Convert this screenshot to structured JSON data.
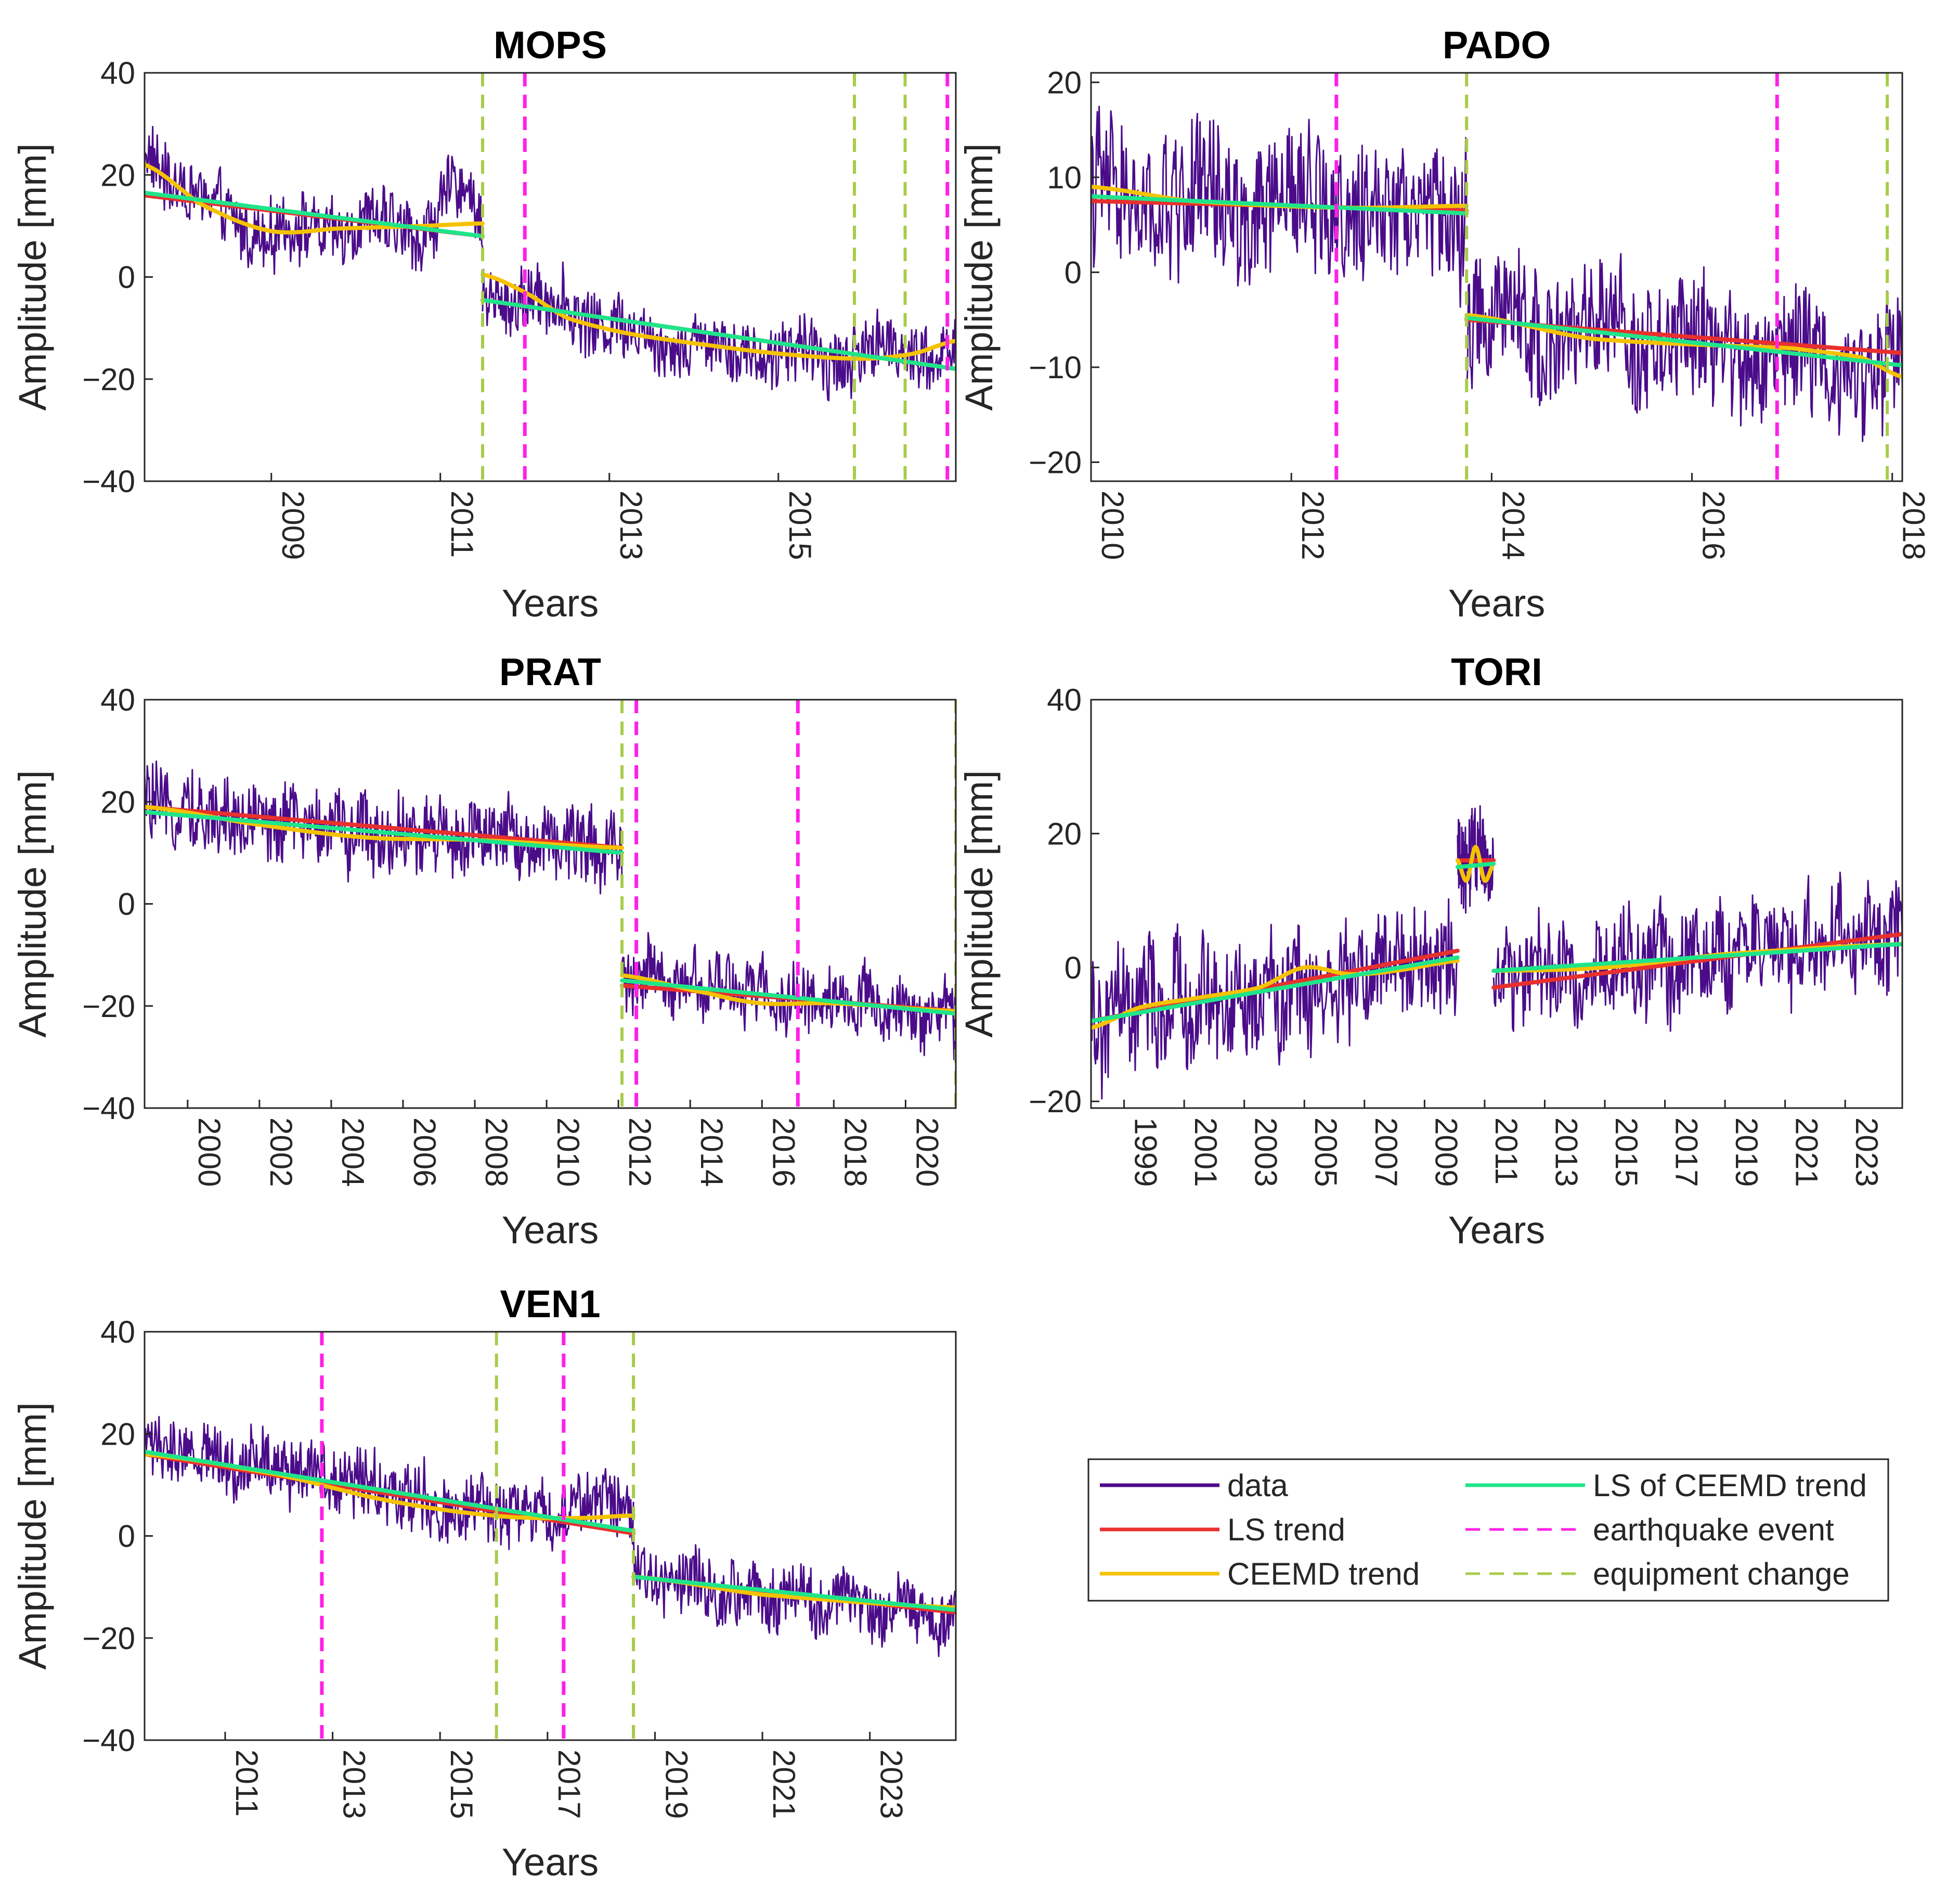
{
  "colors": {
    "data": "#4B0C8A",
    "ls_trend": "#E8302E",
    "ceemd_trend": "#F5C200",
    "ls_ceemd_trend": "#1FE58A",
    "earthquake": "#FF20E8",
    "equipment": "#A8CC4A",
    "axis": "#262626"
  },
  "legend": {
    "items": [
      {
        "label": "data",
        "key": "data",
        "style": "solid"
      },
      {
        "label": "LS trend",
        "key": "ls_trend",
        "style": "solid"
      },
      {
        "label": "CEEMD trend",
        "key": "ceemd_trend",
        "style": "solid"
      },
      {
        "label": "LS of CEEMD trend",
        "key": "ls_ceemd_trend",
        "style": "solid"
      },
      {
        "label": "earthquake event",
        "key": "earthquake",
        "style": "dashed"
      },
      {
        "label": "equipment change",
        "key": "equipment",
        "style": "dashed"
      }
    ]
  },
  "chart_data": [
    {
      "type": "line",
      "title": "MOPS",
      "xlabel": "Years",
      "ylabel": "Amplitude [mm]",
      "xlim": [
        2007.5,
        2017.1
      ],
      "ylim": [
        -40,
        40
      ],
      "xticks": [
        2009,
        2011,
        2013,
        2015
      ],
      "yticks": [
        -40,
        -20,
        0,
        20,
        40
      ],
      "earthquakes": [
        2012.0,
        2017.0
      ],
      "equipment_changes": [
        2011.5,
        2015.9,
        2016.5
      ],
      "segments": [
        {
          "t0": 2007.5,
          "t1": 2011.5,
          "noise": 6,
          "data_trend": [
            [
              2007.5,
              25
            ],
            [
              2008.2,
              14
            ],
            [
              2009.0,
              8
            ],
            [
              2010.0,
              10
            ],
            [
              2010.8,
              9
            ],
            [
              2011.2,
              18
            ],
            [
              2011.5,
              10
            ]
          ],
          "ls_trend": [
            [
              2007.5,
              16
            ],
            [
              2011.5,
              8
            ]
          ],
          "ceemd_trend": [
            [
              2007.5,
              22
            ],
            [
              2008.2,
              14
            ],
            [
              2009.0,
              9
            ],
            [
              2009.8,
              9.5
            ],
            [
              2010.8,
              10
            ],
            [
              2011.5,
              10.5
            ]
          ],
          "ls_ceemd_trend": [
            [
              2007.5,
              16.5
            ],
            [
              2011.5,
              8
            ]
          ]
        },
        {
          "t0": 2011.5,
          "t1": 2017.1,
          "noise": 6,
          "data_trend": [
            [
              2011.5,
              -3
            ],
            [
              2012.5,
              -6
            ],
            [
              2013.5,
              -12
            ],
            [
              2014.5,
              -14
            ],
            [
              2015.5,
              -16
            ],
            [
              2016.3,
              -14
            ],
            [
              2017.1,
              -15
            ]
          ],
          "ls_trend": [
            [
              2011.5,
              -4.5
            ],
            [
              2017.1,
              -18
            ]
          ],
          "ceemd_trend": [
            [
              2011.5,
              0.5
            ],
            [
              2012.0,
              -3
            ],
            [
              2012.5,
              -8
            ],
            [
              2013.2,
              -11
            ],
            [
              2014.0,
              -13
            ],
            [
              2015.0,
              -15
            ],
            [
              2016.0,
              -16
            ],
            [
              2016.6,
              -15
            ],
            [
              2017.1,
              -12.5
            ]
          ],
          "ls_ceemd_trend": [
            [
              2011.5,
              -4.5
            ],
            [
              2017.1,
              -18
            ]
          ]
        }
      ]
    },
    {
      "type": "line",
      "title": "PADO",
      "xlabel": "Years",
      "ylabel": "Amplitude [mm]",
      "xlim": [
        2010,
        2018.1
      ],
      "ylim": [
        -22,
        21
      ],
      "xticks": [
        2010,
        2012,
        2014,
        2016,
        2018
      ],
      "yticks": [
        -20,
        -10,
        0,
        10,
        20
      ],
      "earthquakes": [
        2012.45,
        2016.85
      ],
      "equipment_changes": [
        2013.75,
        2017.95
      ],
      "segments": [
        {
          "t0": 2010,
          "t1": 2013.75,
          "noise": 7,
          "data_trend": [
            [
              2010,
              7.5
            ],
            [
              2013.75,
              6.5
            ]
          ],
          "ls_trend": [
            [
              2010,
              7.5
            ],
            [
              2013.75,
              6.5
            ]
          ],
          "ceemd_trend": [
            [
              2010,
              9
            ],
            [
              2011,
              7.5
            ],
            [
              2012.5,
              6.8
            ],
            [
              2013.75,
              7
            ]
          ],
          "ls_ceemd_trend": [
            [
              2010,
              8
            ],
            [
              2013.75,
              6.2
            ]
          ]
        },
        {
          "t0": 2013.75,
          "t1": 2018.1,
          "noise": 6,
          "data_trend": [
            [
              2013.75,
              -5
            ],
            [
              2018.1,
              -10
            ]
          ],
          "ls_trend": [
            [
              2013.75,
              -5
            ],
            [
              2018.1,
              -8.5
            ]
          ],
          "ceemd_trend": [
            [
              2013.75,
              -4.5
            ],
            [
              2015,
              -7
            ],
            [
              2017,
              -8
            ],
            [
              2017.7,
              -9
            ],
            [
              2018.1,
              -11
            ]
          ],
          "ls_ceemd_trend": [
            [
              2013.75,
              -4.8
            ],
            [
              2018.1,
              -9.8
            ]
          ]
        }
      ]
    },
    {
      "type": "line",
      "title": "PRAT",
      "xlabel": "Years",
      "ylabel": "Amplitude [mm]",
      "xlim": [
        1998.8,
        2021.4
      ],
      "ylim": [
        -40,
        40
      ],
      "xticks": [
        2000,
        2002,
        2004,
        2006,
        2008,
        2010,
        2012,
        2014,
        2016,
        2018,
        2020
      ],
      "yticks": [
        -40,
        -20,
        0,
        20,
        40
      ],
      "earthquakes": [
        2012.5,
        2017.0
      ],
      "equipment_changes": [
        2012.1,
        2021.4
      ],
      "segments": [
        {
          "t0": 1998.8,
          "t1": 2012.1,
          "noise": 7,
          "data_trend": [
            [
              1998.8,
              19
            ],
            [
              2005,
              14
            ],
            [
              2012.1,
              11
            ]
          ],
          "ls_trend": [
            [
              1998.8,
              19
            ],
            [
              2012.1,
              11
            ]
          ],
          "ceemd_trend": [
            [
              1998.8,
              19
            ],
            [
              2002,
              15.5
            ],
            [
              2005,
              13
            ],
            [
              2008,
              12.5
            ],
            [
              2012.1,
              11
            ]
          ],
          "ls_ceemd_trend": [
            [
              1998.8,
              18
            ],
            [
              2012.1,
              10
            ]
          ]
        },
        {
          "t0": 2012.1,
          "t1": 2021.4,
          "noise": 6,
          "data_trend": [
            [
              2012.1,
              -14
            ],
            [
              2021.4,
              -22
            ]
          ],
          "ls_trend": [
            [
              2012.1,
              -16
            ],
            [
              2021.4,
              -21
            ]
          ],
          "ceemd_trend": [
            [
              2012.1,
              -14
            ],
            [
              2014.5,
              -17.5
            ],
            [
              2016,
              -19.5
            ],
            [
              2018,
              -19.5
            ],
            [
              2021.4,
              -21
            ]
          ],
          "ls_ceemd_trend": [
            [
              2012.1,
              -15
            ],
            [
              2021.4,
              -21.5
            ]
          ]
        }
      ]
    },
    {
      "type": "line",
      "title": "TORI",
      "xlabel": "Years",
      "ylabel": "Amplitude [mm]",
      "xlim": [
        1997.9,
        2024.9
      ],
      "ylim": [
        -21,
        40
      ],
      "xticks": [
        1999,
        2001,
        2003,
        2005,
        2007,
        2009,
        2011,
        2013,
        2015,
        2017,
        2019,
        2021,
        2023
      ],
      "yticks": [
        -20,
        0,
        20,
        40
      ],
      "earthquakes": [],
      "equipment_changes": [],
      "segments": [
        {
          "t0": 1997.9,
          "t1": 2010.1,
          "noise": 8,
          "data_trend": [
            [
              1997.9,
              -9
            ],
            [
              1999,
              -6
            ],
            [
              2003,
              -5
            ],
            [
              2007,
              -1
            ],
            [
              2010.1,
              1
            ]
          ],
          "ls_trend": [
            [
              1997.9,
              -8
            ],
            [
              2010.1,
              2.5
            ]
          ],
          "ceemd_trend": [
            [
              1997.9,
              -9
            ],
            [
              1999.5,
              -6
            ],
            [
              2001.5,
              -4.5
            ],
            [
              2003.5,
              -3
            ],
            [
              2005,
              0
            ],
            [
              2006.5,
              -1
            ],
            [
              2008,
              -0.5
            ],
            [
              2010.1,
              1
            ]
          ],
          "ls_ceemd_trend": [
            [
              1997.9,
              -8
            ],
            [
              2010.1,
              1.5
            ]
          ]
        },
        {
          "t0": 2010.1,
          "t1": 2011.3,
          "noise": 6,
          "data_trend": [
            [
              2010.1,
              16
            ],
            [
              2011.3,
              16
            ]
          ],
          "ls_trend": [
            [
              2010.1,
              16
            ],
            [
              2011.3,
              16
            ]
          ],
          "ceemd_trend": [
            [
              2010.1,
              16
            ],
            [
              2010.4,
              13
            ],
            [
              2010.7,
              18
            ],
            [
              2011.0,
              13
            ],
            [
              2011.3,
              15.5
            ]
          ],
          "ls_ceemd_trend": [
            [
              2010.1,
              15
            ],
            [
              2011.3,
              15.5
            ]
          ]
        },
        {
          "t0": 2011.3,
          "t1": 2024.9,
          "noise": 7,
          "data_trend": [
            [
              2011.3,
              -2
            ],
            [
              2024.9,
              5
            ]
          ],
          "ls_trend": [
            [
              2011.3,
              -3
            ],
            [
              2024.9,
              5
            ]
          ],
          "ceemd_trend": [
            [
              2011.3,
              -0.5
            ],
            [
              2015,
              0
            ],
            [
              2019,
              2
            ],
            [
              2024.9,
              3.5
            ]
          ],
          "ls_ceemd_trend": [
            [
              2011.3,
              -0.5
            ],
            [
              2024.9,
              3.5
            ]
          ]
        }
      ]
    },
    {
      "type": "line",
      "title": "VEN1",
      "xlabel": "Years",
      "ylabel": "Amplitude [mm]",
      "xlim": [
        2009.5,
        2024.6
      ],
      "ylim": [
        -40,
        40
      ],
      "xticks": [
        2011,
        2013,
        2015,
        2017,
        2019,
        2021,
        2023
      ],
      "yticks": [
        -40,
        -20,
        0,
        20,
        40
      ],
      "earthquakes": [
        2012.8,
        2017.3
      ],
      "equipment_changes": [
        2016.05,
        2018.6
      ],
      "segments": [
        {
          "t0": 2009.5,
          "t1": 2018.6,
          "noise": 6,
          "data_trend": [
            [
              2009.5,
              17
            ],
            [
              2012.8,
              13
            ],
            [
              2015,
              6
            ],
            [
              2017,
              4
            ],
            [
              2018.2,
              8
            ],
            [
              2018.6,
              2
            ]
          ],
          "ls_trend": [
            [
              2009.5,
              16
            ],
            [
              2018.6,
              0.5
            ]
          ],
          "ceemd_trend": [
            [
              2009.5,
              16
            ],
            [
              2012,
              12
            ],
            [
              2014,
              7
            ],
            [
              2016,
              4
            ],
            [
              2017.5,
              3.5
            ],
            [
              2018.6,
              4
            ]
          ],
          "ls_ceemd_trend": [
            [
              2009.5,
              16.5
            ],
            [
              2018.6,
              1
            ]
          ]
        },
        {
          "t0": 2018.6,
          "t1": 2024.6,
          "noise": 6,
          "data_trend": [
            [
              2018.6,
              -7
            ],
            [
              2021,
              -12
            ],
            [
              2024.6,
              -16
            ]
          ],
          "ls_trend": [
            [
              2018.6,
              -8
            ],
            [
              2024.6,
              -15
            ]
          ],
          "ceemd_trend": [
            [
              2018.6,
              -8
            ],
            [
              2021,
              -11.5
            ],
            [
              2024.6,
              -14
            ]
          ],
          "ls_ceemd_trend": [
            [
              2018.6,
              -8
            ],
            [
              2024.6,
              -14.5
            ]
          ]
        }
      ]
    }
  ]
}
